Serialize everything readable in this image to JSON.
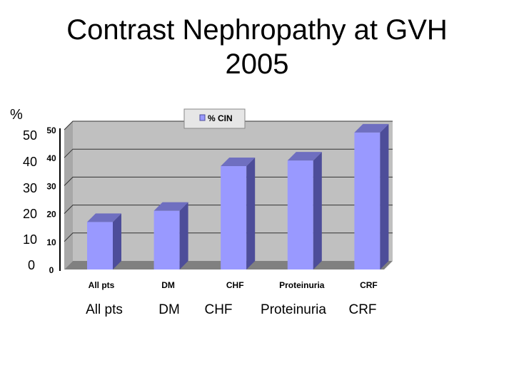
{
  "slide": {
    "title_line1": "Contrast Nephropathy at GVH",
    "title_line2": "2005",
    "y_unit_label": "%",
    "outer_y_ticks": [
      "50",
      "40",
      "30",
      "20",
      "10",
      "0"
    ],
    "outer_x_labels": [
      "All pts",
      "DM",
      "CHF",
      "Proteinuria",
      "CRF"
    ]
  },
  "colors": {
    "bar_front": "#9999ff",
    "bar_side": "#4d4d99",
    "bar_top": "#6f6fc0",
    "wall": "#c0c0c0",
    "floor": "#808080"
  },
  "chart_data": {
    "type": "bar",
    "title": "",
    "categories": [
      "All pts",
      "DM",
      "CHF",
      "Proteinuria",
      "CRF"
    ],
    "series": [
      {
        "name": "% CIN",
        "values": [
          17,
          21,
          37,
          39,
          49
        ]
      }
    ],
    "ylim": [
      0,
      50
    ],
    "yticks": [
      0,
      10,
      20,
      30,
      40,
      50
    ],
    "xlabel": "",
    "ylabel": "%",
    "legend": "top-center",
    "grid": true
  }
}
